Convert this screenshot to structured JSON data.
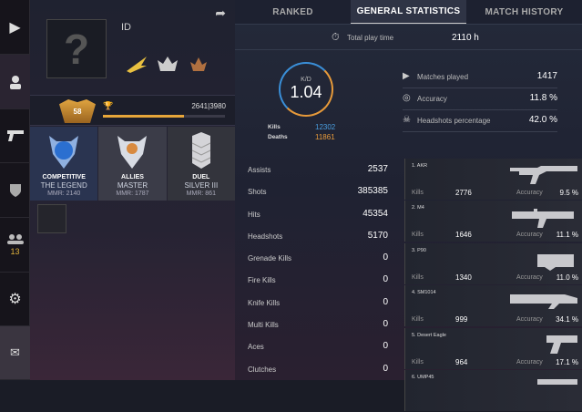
{
  "sidebar": {
    "items": [
      {
        "icon": "play-icon"
      },
      {
        "icon": "user-icon",
        "active": true
      },
      {
        "icon": "pistol-icon"
      },
      {
        "icon": "shield-icon"
      },
      {
        "icon": "friends-icon",
        "count": "13"
      },
      {
        "icon": "gear-icon"
      },
      {
        "icon": "mail-icon"
      }
    ]
  },
  "profile": {
    "avatar": "?",
    "id": "ID",
    "level": "58",
    "xp": "2641|3980",
    "xp_progress": 0.664,
    "ranks": [
      {
        "mode": "COMPETITIVE",
        "rank": "THE LEGEND",
        "mmr": "MMR: 2140"
      },
      {
        "mode": "ALLIES",
        "rank": "MASTER",
        "mmr": "MMR: 1787"
      },
      {
        "mode": "DUEL",
        "rank": "SILVER III",
        "mmr": "MMR: 861"
      }
    ]
  },
  "tabs": [
    {
      "label": "RANKED"
    },
    {
      "label": "GENERAL STATISTICS",
      "active": true
    },
    {
      "label": "MATCH HISTORY"
    }
  ],
  "playtime": {
    "label": "Total play time",
    "value": "2110 h"
  },
  "kd": {
    "label": "K/D",
    "value": "1.04",
    "kills_label": "Kills",
    "kills": "12302",
    "deaths_label": "Deaths",
    "deaths": "11861",
    "kills_color": "#4a9fe0",
    "deaths_color": "#e79a3a"
  },
  "general": [
    {
      "label": "Matches played",
      "value": "1417",
      "icon": "play-icon"
    },
    {
      "label": "Accuracy",
      "value": "11.8 %",
      "icon": "target-icon"
    },
    {
      "label": "Headshots percentage",
      "value": "42.0 %",
      "icon": "headshot-icon"
    }
  ],
  "stats": [
    {
      "label": "Assists",
      "value": "2537"
    },
    {
      "label": "Shots",
      "value": "385385"
    },
    {
      "label": "Hits",
      "value": "45354"
    },
    {
      "label": "Headshots",
      "value": "5170"
    },
    {
      "label": "Grenade Kills",
      "value": "0"
    },
    {
      "label": "Fire Kills",
      "value": "0"
    },
    {
      "label": "Knife Kills",
      "value": "0"
    },
    {
      "label": "Multi Kills",
      "value": "0"
    },
    {
      "label": "Aces",
      "value": "0"
    },
    {
      "label": "Clutches",
      "value": "0"
    }
  ],
  "weapons": [
    {
      "name": "1. AKR",
      "kills": "2776",
      "accuracy": "9.5 %"
    },
    {
      "name": "2. M4",
      "kills": "1646",
      "accuracy": "11.1 %"
    },
    {
      "name": "3. P90",
      "kills": "1340",
      "accuracy": "11.0 %"
    },
    {
      "name": "4. SM1014",
      "kills": "999",
      "accuracy": "34.1 %"
    },
    {
      "name": "5. Desert Eagle",
      "kills": "964",
      "accuracy": "17.1 %"
    },
    {
      "name": "6. UMP45",
      "kills": "",
      "accuracy": ""
    }
  ],
  "weapon_labels": {
    "kills": "Kills",
    "accuracy": "Accuracy"
  }
}
